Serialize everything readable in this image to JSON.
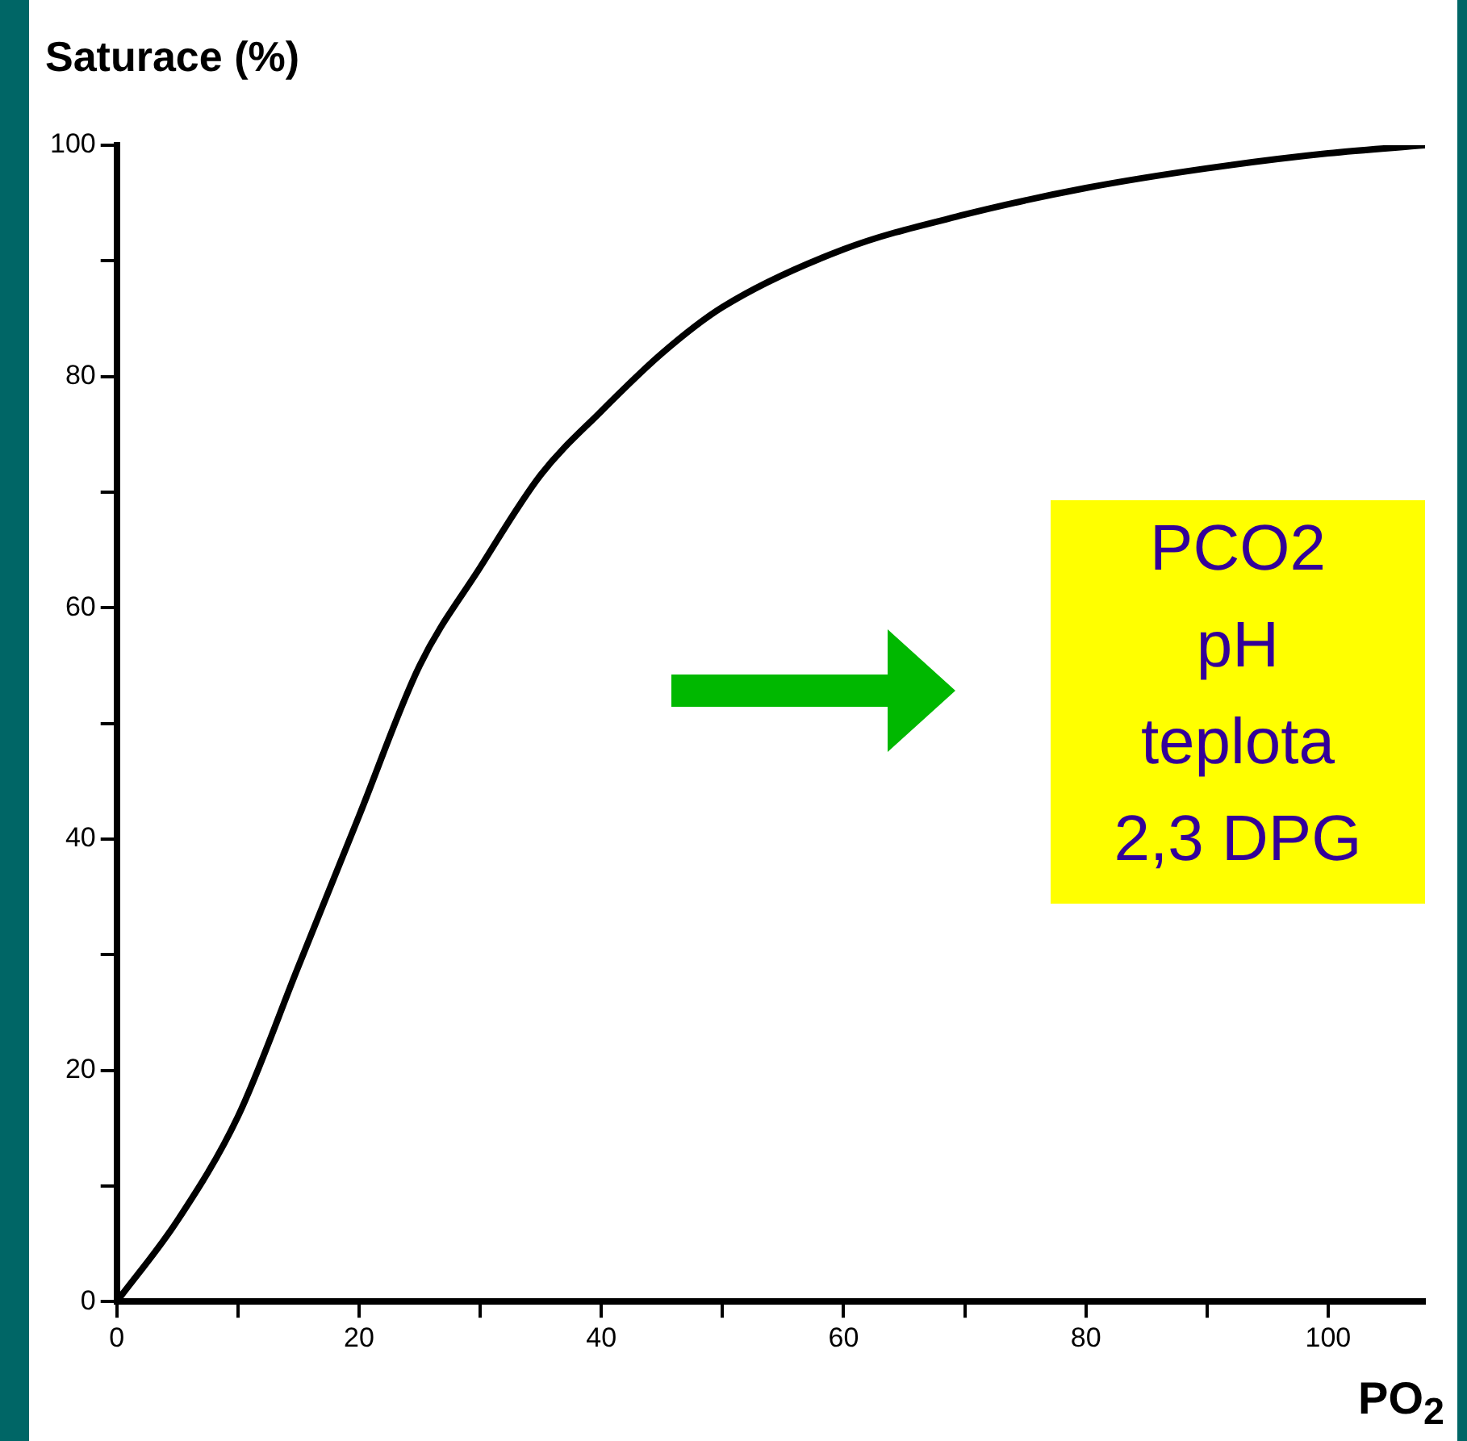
{
  "chart_data": {
    "type": "line",
    "ylabel": "Saturace (%)",
    "xlabel": "PO$_{2}$",
    "x": [
      0,
      5,
      10,
      15,
      20,
      25,
      30,
      35,
      40,
      45,
      50,
      60,
      70,
      80,
      90,
      100,
      108
    ],
    "series": [
      {
        "color": "#000000",
        "values": [
          0,
          7,
          16,
          29,
          42,
          55,
          63.5,
          71.5,
          77,
          82,
          86,
          91,
          94,
          96.3,
          98,
          99.3,
          100
        ]
      }
    ],
    "xlim": [
      0,
      108
    ],
    "ylim": [
      0,
      100
    ],
    "xticks": [
      0,
      {
        "value": 10,
        "label": null
      },
      20,
      {
        "value": 30,
        "label": null
      },
      40,
      {
        "value": 50,
        "label": null
      },
      60,
      {
        "value": 70,
        "label": null
      },
      80,
      {
        "value": 90,
        "label": null
      },
      100
    ],
    "yticks": [
      0,
      {
        "value": 10,
        "label": null
      },
      20,
      {
        "value": 30,
        "label": null
      },
      40,
      {
        "value": 50,
        "label": null
      },
      60,
      {
        "value": 70,
        "label": null
      },
      80,
      {
        "value": 90,
        "label": null
      },
      100
    ],
    "annotations": [
      "PCO2\npH\nteplota\n2,3 DPG"
    ]
  }
}
